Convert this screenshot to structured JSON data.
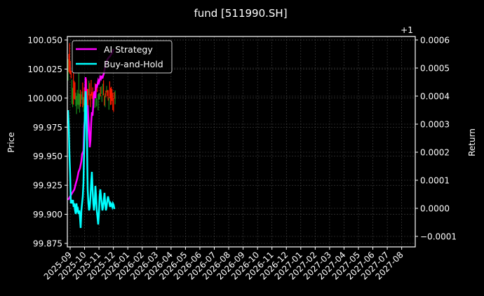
{
  "chart_data": {
    "type": "line",
    "title": "fund [511990.SH]",
    "xlabel": "",
    "ylabel": "Price",
    "ylabel_right": "Return",
    "right_axis_offset": "+1",
    "ylim": [
      99.872,
      100.053
    ],
    "ylim_right": [
      -0.00013,
      0.000605
    ],
    "yticks": [
      "99.875",
      "99.900",
      "99.925",
      "99.950",
      "99.975",
      "100.000",
      "100.025",
      "100.050"
    ],
    "yticks_right": [
      "−0.0001",
      "0.0000",
      "0.0001",
      "0.0002",
      "0.0003",
      "0.0004",
      "0.0005",
      "0.0006"
    ],
    "xticks": [
      "2025-09",
      "2025-10",
      "2025-11",
      "2025-12",
      "2026-01",
      "2026-02",
      "2026-03",
      "2026-04",
      "2026-05",
      "2026-06",
      "2026-07",
      "2026-08",
      "2026-09",
      "2026-10",
      "2026-11",
      "2026-12",
      "2027-01",
      "2027-02",
      "2027-03",
      "2027-04",
      "2027-05",
      "2027-06",
      "2027-07",
      "2027-08"
    ],
    "grid": true,
    "legend_position": "upper left",
    "series": [
      {
        "name": "AI Strategy",
        "color": "#ff00ff",
        "axis": "right",
        "note": "cumulative return rising from ~0.0000 to ~0.0006 over 2025-09 to 2025-12"
      },
      {
        "name": "Buy-and-Hold",
        "color": "#00ffff",
        "axis": "right",
        "note": "cumulative return oscillating, ending near 0.0000"
      },
      {
        "name": "Price candles",
        "color": "#ff0000/#008000",
        "axis": "left",
        "note": "price fluctuating around 100.000, range ~99.985-100.045"
      }
    ]
  },
  "legend": {
    "items": [
      {
        "label": "AI Strategy",
        "color": "#ff00ff"
      },
      {
        "label": "Buy-and-Hold",
        "color": "#00ffff"
      }
    ]
  }
}
